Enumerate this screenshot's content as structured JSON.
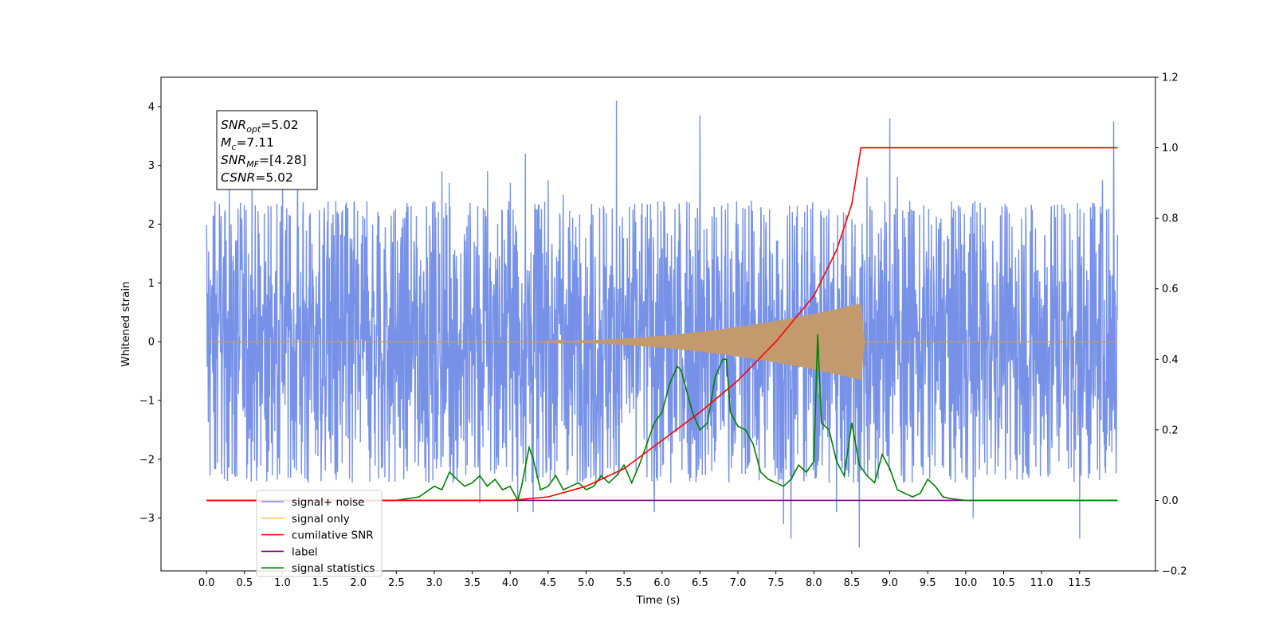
{
  "chart_data": {
    "type": "line",
    "xlabel": "Time (s)",
    "ylabel": "Whitened strain",
    "xlim": [
      -0.6,
      12.5
    ],
    "ylim": [
      -3.9,
      4.5
    ],
    "y2lim": [
      -0.2,
      1.2
    ],
    "x_ticks": [
      "0.0",
      "0.5",
      "1.0",
      "1.5",
      "2.0",
      "2.5",
      "3.0",
      "3.5",
      "4.0",
      "4.5",
      "5.0",
      "5.5",
      "6.0",
      "6.5",
      "7.0",
      "7.5",
      "8.0",
      "8.5",
      "9.0",
      "9.5",
      "10.0",
      "10.5",
      "11.0",
      "11.5"
    ],
    "y_ticks": [
      "4",
      "3",
      "2",
      "1",
      "0",
      "−1",
      "−2",
      "−3"
    ],
    "y2_ticks": [
      "1.2",
      "1.0",
      "0.8",
      "0.6",
      "0.4",
      "0.2",
      "0.0",
      "−0.2"
    ],
    "annotation": [
      {
        "sym": "SNR",
        "sub": "opt",
        "value": "=5.02"
      },
      {
        "sym": "M",
        "sub": "c",
        "value": "=7.11"
      },
      {
        "sym": "SNR",
        "sub": "MF",
        "value": "=[4.28]"
      },
      {
        "sym": "CSNR",
        "sub": "",
        "value": "=5.02"
      }
    ],
    "legend": [
      {
        "label": "signal+ noise",
        "color": "#6f8be6"
      },
      {
        "label": "signal only",
        "color": "#ffc46b"
      },
      {
        "label": "cumilative SNR",
        "color": "#ff0000"
      },
      {
        "label": "label",
        "color": "#800080"
      },
      {
        "label": "signal statistics",
        "color": "#008000"
      }
    ],
    "legend_placement": "lower-left",
    "series": [
      {
        "name": "signal+ noise",
        "axis": "left",
        "color": "#6f8be6",
        "x_range": [
          0.0,
          12.0
        ],
        "amplitude_envelope": 2.4,
        "spikes": [
          [
            0.1,
            2.15
          ],
          [
            0.3,
            2.6
          ],
          [
            0.6,
            3.1
          ],
          [
            1.0,
            2.8
          ],
          [
            1.2,
            3.15
          ],
          [
            2.9,
            2.3
          ],
          [
            3.1,
            2.9
          ],
          [
            3.2,
            2.7
          ],
          [
            3.7,
            2.9
          ],
          [
            4.0,
            2.7
          ],
          [
            4.3,
            -2.9
          ],
          [
            4.5,
            2.75
          ],
          [
            4.7,
            2.5
          ],
          [
            4.2,
            3.2
          ],
          [
            5.4,
            4.1
          ],
          [
            6.5,
            3.85
          ],
          [
            8.7,
            2.8
          ],
          [
            9.0,
            3.8
          ],
          [
            9.1,
            2.8
          ],
          [
            11.5,
            3.3
          ],
          [
            11.8,
            2.75
          ],
          [
            11.95,
            3.75
          ],
          [
            7.7,
            -3.35
          ],
          [
            8.6,
            -3.5
          ],
          [
            11.5,
            -3.35
          ],
          [
            10.1,
            -3.0
          ],
          [
            7.6,
            -3.1
          ],
          [
            8.3,
            -2.9
          ],
          [
            5.9,
            -2.9
          ],
          [
            4.1,
            -2.9
          ],
          [
            3.6,
            -2.75
          ]
        ]
      },
      {
        "name": "signal only",
        "axis": "left",
        "color": "#c39a6e",
        "chirp_start": 4.0,
        "merger": 8.62,
        "max_amplitude": 0.65
      },
      {
        "name": "cumilative SNR",
        "axis": "right",
        "color": "#ff0000",
        "x": [
          0.0,
          4.0,
          4.5,
          5.0,
          5.5,
          6.0,
          6.5,
          7.0,
          7.5,
          8.0,
          8.3,
          8.5,
          8.62,
          12.0
        ],
        "y": [
          0.0,
          0.0,
          0.01,
          0.04,
          0.09,
          0.17,
          0.25,
          0.34,
          0.45,
          0.58,
          0.71,
          0.84,
          1.0,
          1.0
        ]
      },
      {
        "name": "label",
        "axis": "right",
        "color": "#800080",
        "x": [
          0.0,
          12.0
        ],
        "y": [
          0.0,
          0.0
        ]
      },
      {
        "name": "signal statistics",
        "axis": "right",
        "color": "#008000",
        "x": [
          0.0,
          2.5,
          2.8,
          3.0,
          3.1,
          3.2,
          3.3,
          3.4,
          3.5,
          3.6,
          3.7,
          3.8,
          3.9,
          4.0,
          4.1,
          4.15,
          4.25,
          4.3,
          4.4,
          4.5,
          4.6,
          4.7,
          4.8,
          4.9,
          5.0,
          5.1,
          5.2,
          5.3,
          5.4,
          5.5,
          5.6,
          5.7,
          5.8,
          5.9,
          6.0,
          6.1,
          6.2,
          6.25,
          6.3,
          6.4,
          6.5,
          6.6,
          6.7,
          6.8,
          6.85,
          6.9,
          7.0,
          7.1,
          7.2,
          7.3,
          7.4,
          7.5,
          7.6,
          7.7,
          7.8,
          7.9,
          8.0,
          8.05,
          8.1,
          8.2,
          8.3,
          8.4,
          8.5,
          8.6,
          8.7,
          8.8,
          8.9,
          9.0,
          9.1,
          9.2,
          9.3,
          9.4,
          9.5,
          9.6,
          9.7,
          9.8,
          10.0,
          10.5,
          12.0
        ],
        "y": [
          0.0,
          0.0,
          0.01,
          0.04,
          0.03,
          0.08,
          0.06,
          0.04,
          0.05,
          0.07,
          0.04,
          0.06,
          0.03,
          0.04,
          0.0,
          0.04,
          0.15,
          0.12,
          0.03,
          0.04,
          0.07,
          0.03,
          0.04,
          0.05,
          0.03,
          0.04,
          0.07,
          0.05,
          0.07,
          0.1,
          0.05,
          0.1,
          0.16,
          0.22,
          0.25,
          0.33,
          0.38,
          0.37,
          0.33,
          0.25,
          0.2,
          0.22,
          0.35,
          0.4,
          0.4,
          0.25,
          0.21,
          0.2,
          0.16,
          0.08,
          0.06,
          0.05,
          0.04,
          0.06,
          0.1,
          0.08,
          0.11,
          0.47,
          0.22,
          0.2,
          0.11,
          0.07,
          0.22,
          0.1,
          0.07,
          0.05,
          0.13,
          0.09,
          0.03,
          0.02,
          0.01,
          0.02,
          0.06,
          0.04,
          0.01,
          0.005,
          0.0,
          0.0,
          0.0
        ]
      }
    ]
  }
}
